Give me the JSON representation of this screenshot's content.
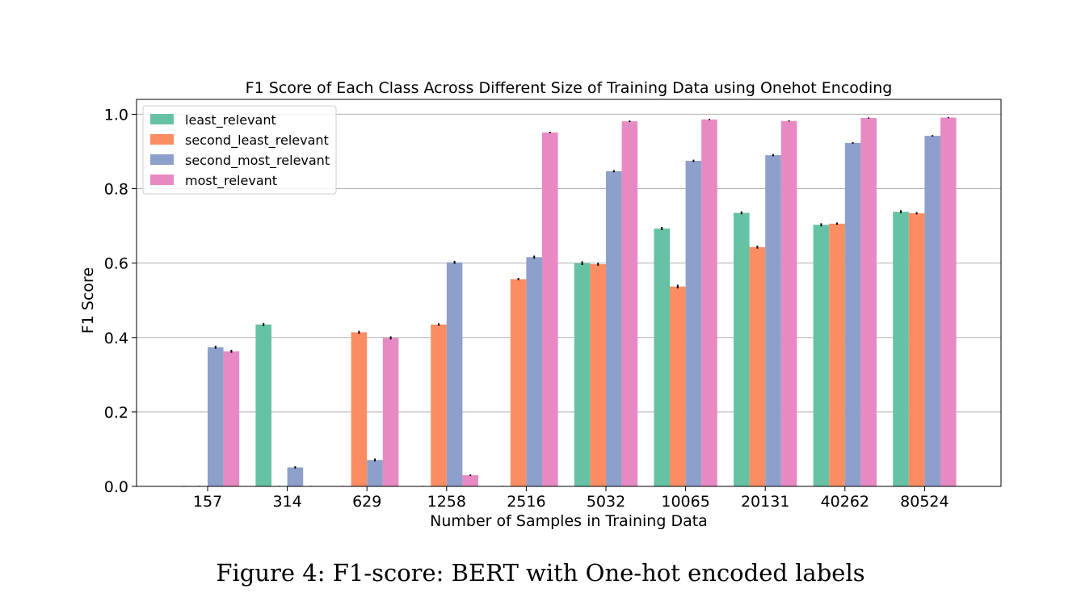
{
  "chart_data": {
    "type": "bar",
    "title": "F1 Score of Each Class Across Different Size of Training Data using Onehot Encoding",
    "xlabel": "Number of Samples in Training Data",
    "ylabel": "F1 Score",
    "ylim": [
      0,
      1.04
    ],
    "yticks": [
      "0.0",
      "0.2",
      "0.4",
      "0.6",
      "0.8",
      "1.0"
    ],
    "grid": "horizontal",
    "legend_position": "top-left",
    "categories": [
      "157",
      "314",
      "629",
      "1258",
      "2516",
      "5032",
      "10065",
      "20131",
      "40262",
      "80524"
    ],
    "series": [
      {
        "name": "least_relevant",
        "color": "#66c2a5",
        "values": [
          0.0,
          0.435,
          0.0,
          0.0,
          0.0,
          0.6,
          0.693,
          0.735,
          0.703,
          0.738
        ],
        "errors": [
          0.0,
          0.004,
          0.0,
          0.0,
          0.0,
          0.005,
          0.004,
          0.004,
          0.004,
          0.004
        ]
      },
      {
        "name": "second_least_relevant",
        "color": "#fc8d62",
        "values": [
          0.0,
          0.0,
          0.414,
          0.435,
          0.557,
          0.597,
          0.537,
          0.643,
          0.706,
          0.734
        ],
        "errors": [
          0.0,
          0.0,
          0.004,
          0.003,
          0.003,
          0.004,
          0.005,
          0.004,
          0.003,
          0.003
        ]
      },
      {
        "name": "second_most_relevant",
        "color": "#8da0cb",
        "values": [
          0.374,
          0.051,
          0.071,
          0.602,
          0.616,
          0.847,
          0.875,
          0.89,
          0.923,
          0.942
        ],
        "errors": [
          0.004,
          0.003,
          0.004,
          0.004,
          0.004,
          0.003,
          0.003,
          0.003,
          0.002,
          0.002
        ]
      },
      {
        "name": "most_relevant",
        "color": "#e78ac3",
        "values": [
          0.363,
          0.0,
          0.399,
          0.03,
          0.951,
          0.981,
          0.986,
          0.982,
          0.99,
          0.991
        ],
        "errors": [
          0.004,
          0.0,
          0.004,
          0.002,
          0.002,
          0.002,
          0.001,
          0.001,
          0.001,
          0.001
        ]
      }
    ]
  },
  "caption": "Figure 4: F1-score: BERT with One-hot encoded labels"
}
